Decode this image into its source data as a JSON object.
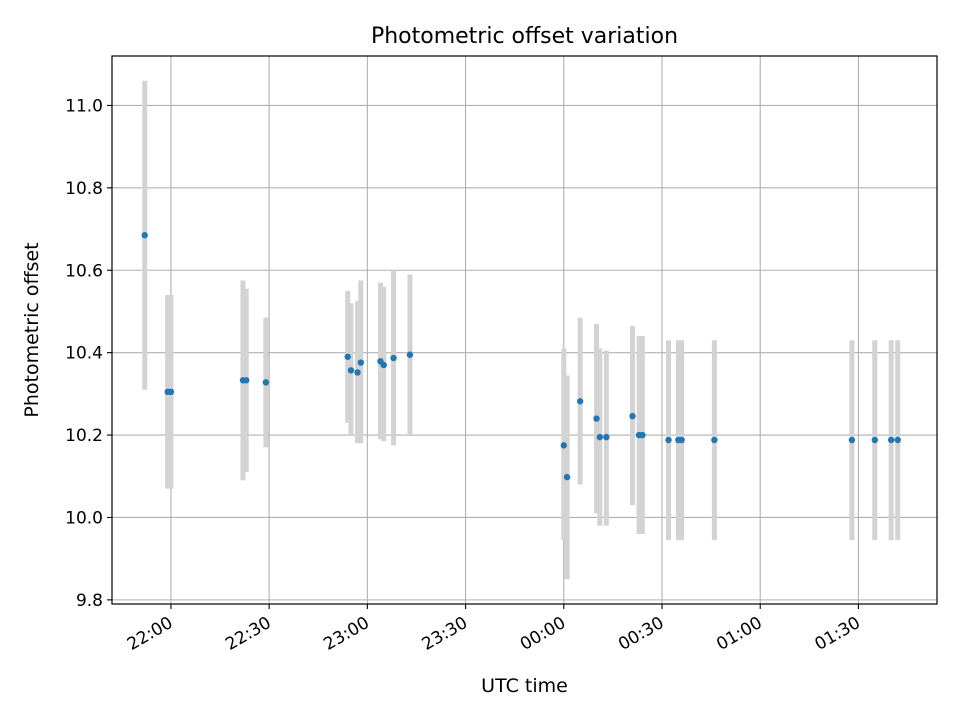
{
  "chart_data": {
    "type": "scatter",
    "title": "Photometric offset variation",
    "xlabel": "UTC time",
    "ylabel": "Photometric offset",
    "x_unit": "UTC time (HH:MM)",
    "xlim": [
      "21:42",
      "01:54"
    ],
    "ylim": [
      9.79,
      11.12
    ],
    "x_ticks": [
      "22:00",
      "22:30",
      "23:00",
      "23:30",
      "00:00",
      "00:30",
      "01:00",
      "01:30"
    ],
    "y_ticks": [
      9.8,
      10.0,
      10.2,
      10.4,
      10.6,
      10.8,
      11.0
    ],
    "y_tick_labels": [
      "9.8",
      "10.0",
      "10.2",
      "10.4",
      "10.6",
      "10.8",
      "11.0"
    ],
    "grid": true,
    "marker_color": "#1f77b4",
    "errorbar_color": "#d3d3d3",
    "points": [
      {
        "t": "21:52",
        "y": 10.685,
        "lo": 10.31,
        "hi": 11.06
      },
      {
        "t": "21:59",
        "y": 10.305,
        "lo": 10.07,
        "hi": 10.54
      },
      {
        "t": "22:00",
        "y": 10.305,
        "lo": 10.07,
        "hi": 10.54
      },
      {
        "t": "22:22",
        "y": 10.333,
        "lo": 10.09,
        "hi": 10.575
      },
      {
        "t": "22:23",
        "y": 10.333,
        "lo": 10.11,
        "hi": 10.555
      },
      {
        "t": "22:29",
        "y": 10.328,
        "lo": 10.17,
        "hi": 10.485
      },
      {
        "t": "22:54",
        "y": 10.39,
        "lo": 10.23,
        "hi": 10.55
      },
      {
        "t": "22:55",
        "y": 10.357,
        "lo": 10.2,
        "hi": 10.52
      },
      {
        "t": "22:57",
        "y": 10.352,
        "lo": 10.18,
        "hi": 10.525
      },
      {
        "t": "22:58",
        "y": 10.376,
        "lo": 10.18,
        "hi": 10.575
      },
      {
        "t": "23:04",
        "y": 10.379,
        "lo": 10.19,
        "hi": 10.57
      },
      {
        "t": "23:05",
        "y": 10.37,
        "lo": 10.185,
        "hi": 10.56
      },
      {
        "t": "23:08",
        "y": 10.387,
        "lo": 10.175,
        "hi": 10.6
      },
      {
        "t": "23:13",
        "y": 10.395,
        "lo": 10.2,
        "hi": 10.59
      },
      {
        "t": "00:00",
        "y": 10.175,
        "lo": 9.945,
        "hi": 10.41
      },
      {
        "t": "00:01",
        "y": 10.098,
        "lo": 9.85,
        "hi": 10.345
      },
      {
        "t": "00:05",
        "y": 10.282,
        "lo": 10.08,
        "hi": 10.485
      },
      {
        "t": "00:10",
        "y": 10.24,
        "lo": 10.01,
        "hi": 10.47
      },
      {
        "t": "00:11",
        "y": 10.195,
        "lo": 9.98,
        "hi": 10.41
      },
      {
        "t": "00:13",
        "y": 10.195,
        "lo": 9.98,
        "hi": 10.405
      },
      {
        "t": "00:21",
        "y": 10.246,
        "lo": 10.03,
        "hi": 10.465
      },
      {
        "t": "00:23",
        "y": 10.2,
        "lo": 9.96,
        "hi": 10.44
      },
      {
        "t": "00:24",
        "y": 10.2,
        "lo": 9.96,
        "hi": 10.44
      },
      {
        "t": "00:32",
        "y": 10.188,
        "lo": 9.945,
        "hi": 10.43
      },
      {
        "t": "00:35",
        "y": 10.188,
        "lo": 9.945,
        "hi": 10.43
      },
      {
        "t": "00:36",
        "y": 10.188,
        "lo": 9.945,
        "hi": 10.43
      },
      {
        "t": "00:46",
        "y": 10.188,
        "lo": 9.945,
        "hi": 10.43
      },
      {
        "t": "01:28",
        "y": 10.188,
        "lo": 9.945,
        "hi": 10.43
      },
      {
        "t": "01:35",
        "y": 10.188,
        "lo": 9.945,
        "hi": 10.43
      },
      {
        "t": "01:40",
        "y": 10.188,
        "lo": 9.945,
        "hi": 10.43
      },
      {
        "t": "01:42",
        "y": 10.188,
        "lo": 9.945,
        "hi": 10.43
      }
    ]
  }
}
